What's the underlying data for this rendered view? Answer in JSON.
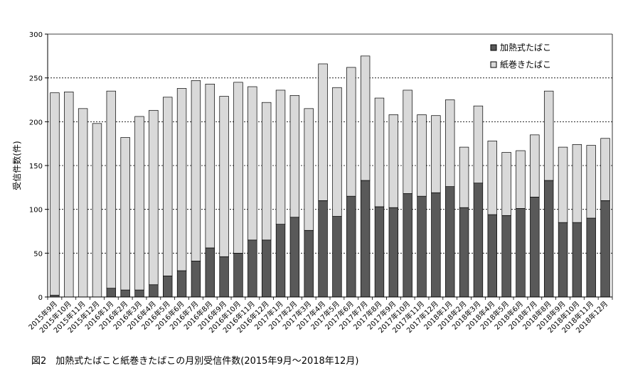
{
  "chart_data": {
    "type": "bar",
    "stacked": true,
    "ylabel": "受信件数(件)",
    "ylim": [
      0,
      300
    ],
    "yticks": [
      "0",
      "50",
      "100",
      "150",
      "200",
      "250",
      "300"
    ],
    "grid": "dashed horizontal",
    "legend_position": "top-right",
    "categories": [
      "2015年9月",
      "2015年10月",
      "2015年11月",
      "2015年12月",
      "2016年1月",
      "2016年2月",
      "2016年3月",
      "2016年4月",
      "2016年5月",
      "2016年6月",
      "2016年7月",
      "2016年8月",
      "2016年9月",
      "2016年10月",
      "2016年11月",
      "2016年12月",
      "2017年1月",
      "2017年2月",
      "2017年3月",
      "2017年4月",
      "2017年5月",
      "2017年6月",
      "2017年7月",
      "2017年8月",
      "2017年9月",
      "2017年10月",
      "2017年11月",
      "2017年12月",
      "2018年1月",
      "2018年2月",
      "2018年3月",
      "2018年4月",
      "2018年5月",
      "2018年6月",
      "2018年7月",
      "2018年8月",
      "2018年9月",
      "2018年10月",
      "2018年11月",
      "2018年12月"
    ],
    "series": [
      {
        "name": "加熱式たばこ",
        "color": "#595959",
        "values": [
          2,
          0,
          0,
          0,
          10,
          8,
          8,
          14,
          24,
          30,
          41,
          56,
          46,
          50,
          65,
          65,
          83,
          91,
          76,
          110,
          92,
          115,
          133,
          103,
          102,
          118,
          115,
          119,
          126,
          102,
          130,
          94,
          93,
          101,
          114,
          133,
          85,
          85,
          90,
          110
        ]
      },
      {
        "name": "紙巻きたばこ",
        "color": "#d9d9d9",
        "values": [
          231,
          234,
          215,
          198,
          225,
          174,
          198,
          199,
          204,
          208,
          206,
          187,
          183,
          195,
          175,
          157,
          153,
          139,
          139,
          156,
          147,
          147,
          142,
          124,
          106,
          118,
          93,
          88,
          99,
          69,
          88,
          84,
          72,
          66,
          71,
          102,
          86,
          89,
          83,
          71
        ]
      }
    ]
  },
  "caption": "図2　加熱式たばこと紙巻きたばこの月別受信件数(2015年9月〜2018年12月)"
}
